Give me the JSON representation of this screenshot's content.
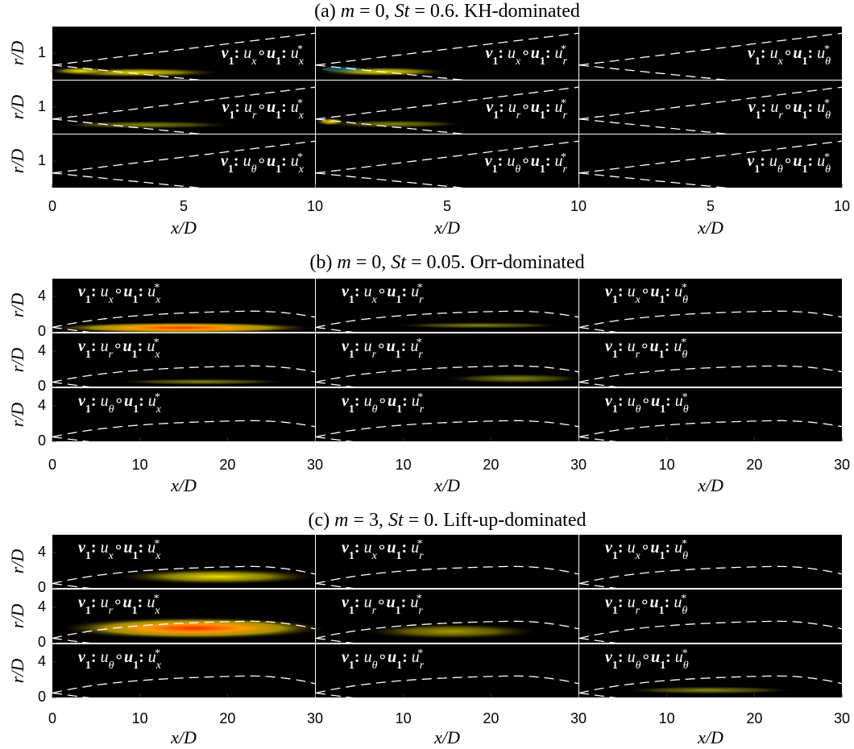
{
  "panels": [
    {
      "title": [
        "(a) ",
        "m",
        " = 0, ",
        "St",
        " = 0.6. KH-dominated"
      ],
      "xlabel": "x/D",
      "ylabel": "r/D",
      "xlim": [
        0,
        10
      ],
      "ylim": [
        0,
        2
      ],
      "yticks": [
        1
      ],
      "columns": [
        {
          "xticks": [
            0,
            5,
            10
          ]
        },
        {
          "xticks": [
            5,
            10
          ]
        },
        {
          "xticks": [
            5,
            10
          ]
        }
      ],
      "rows": [
        [
          {
            "v": "v",
            "v_sub": "1",
            "s1": ": ",
            "a": "u",
            "a_sub": "x",
            "o": "∘",
            "w": "u",
            "w_sub": "1",
            "s2": ": ",
            "b": "u",
            "b_sub": "x",
            "b_sup": "*"
          },
          {
            "v": "v",
            "v_sub": "1",
            "s1": ": ",
            "a": "u",
            "a_sub": "x",
            "o": "∘",
            "w": "u",
            "w_sub": "1",
            "s2": ": ",
            "b": "u",
            "b_sub": "r",
            "b_sup": "*"
          },
          {
            "v": "v",
            "v_sub": "1",
            "s1": ": ",
            "a": "u",
            "a_sub": "x",
            "o": "∘",
            "w": "u",
            "w_sub": "1",
            "s2": ": ",
            "b": "u",
            "b_sub": "θ",
            "b_sup": "*"
          }
        ],
        [
          {
            "v": "v",
            "v_sub": "1",
            "s1": ": ",
            "a": "u",
            "a_sub": "r",
            "o": "∘",
            "w": "u",
            "w_sub": "1",
            "s2": ": ",
            "b": "u",
            "b_sub": "x",
            "b_sup": "*"
          },
          {
            "v": "v",
            "v_sub": "1",
            "s1": ": ",
            "a": "u",
            "a_sub": "r",
            "o": "∘",
            "w": "u",
            "w_sub": "1",
            "s2": ": ",
            "b": "u",
            "b_sub": "r",
            "b_sup": "*"
          },
          {
            "v": "v",
            "v_sub": "1",
            "s1": ": ",
            "a": "u",
            "a_sub": "r",
            "o": "∘",
            "w": "u",
            "w_sub": "1",
            "s2": ": ",
            "b": "u",
            "b_sub": "θ",
            "b_sup": "*"
          }
        ],
        [
          {
            "v": "v",
            "v_sub": "1",
            "s1": ": ",
            "a": "u",
            "a_sub": "θ",
            "o": "∘",
            "w": "u",
            "w_sub": "1",
            "s2": ": ",
            "b": "u",
            "b_sub": "x",
            "b_sup": "*"
          },
          {
            "v": "v",
            "v_sub": "1",
            "s1": ": ",
            "a": "u",
            "a_sub": "θ",
            "o": "∘",
            "w": "u",
            "w_sub": "1",
            "s2": ": ",
            "b": "u",
            "b_sub": "r",
            "b_sup": "*"
          },
          {
            "v": "v",
            "v_sub": "1",
            "s1": ": ",
            "a": "u",
            "a_sub": "θ",
            "o": "∘",
            "w": "u",
            "w_sub": "1",
            "s2": ": ",
            "b": "u",
            "b_sub": "θ",
            "b_sup": "*"
          }
        ]
      ]
    },
    {
      "title": [
        "(b) ",
        "m",
        " = 0, ",
        "St",
        " = 0.05. Orr-dominated"
      ],
      "xlabel": "x/D",
      "ylabel": "r/D",
      "xlim": [
        0,
        30
      ],
      "ylim": [
        0,
        6
      ],
      "yticks": [
        0,
        4
      ],
      "columns": [
        {
          "xticks": [
            0,
            10,
            20,
            30
          ]
        },
        {
          "xticks": [
            10,
            20,
            30
          ]
        },
        {
          "xticks": [
            10,
            20,
            30
          ]
        }
      ],
      "rows": [
        [
          {
            "v": "v",
            "v_sub": "1",
            "s1": ": ",
            "a": "u",
            "a_sub": "x",
            "o": "∘",
            "w": "u",
            "w_sub": "1",
            "s2": ": ",
            "b": "u",
            "b_sub": "x",
            "b_sup": "*"
          },
          {
            "v": "v",
            "v_sub": "1",
            "s1": ": ",
            "a": "u",
            "a_sub": "x",
            "o": "∘",
            "w": "u",
            "w_sub": "1",
            "s2": ": ",
            "b": "u",
            "b_sub": "r",
            "b_sup": "*"
          },
          {
            "v": "v",
            "v_sub": "1",
            "s1": ": ",
            "a": "u",
            "a_sub": "x",
            "o": "∘",
            "w": "u",
            "w_sub": "1",
            "s2": ": ",
            "b": "u",
            "b_sub": "θ",
            "b_sup": "*"
          }
        ],
        [
          {
            "v": "v",
            "v_sub": "1",
            "s1": ": ",
            "a": "u",
            "a_sub": "r",
            "o": "∘",
            "w": "u",
            "w_sub": "1",
            "s2": ": ",
            "b": "u",
            "b_sub": "x",
            "b_sup": "*"
          },
          {
            "v": "v",
            "v_sub": "1",
            "s1": ": ",
            "a": "u",
            "a_sub": "r",
            "o": "∘",
            "w": "u",
            "w_sub": "1",
            "s2": ": ",
            "b": "u",
            "b_sub": "r",
            "b_sup": "*"
          },
          {
            "v": "v",
            "v_sub": "1",
            "s1": ": ",
            "a": "u",
            "a_sub": "r",
            "o": "∘",
            "w": "u",
            "w_sub": "1",
            "s2": ": ",
            "b": "u",
            "b_sub": "θ",
            "b_sup": "*"
          }
        ],
        [
          {
            "v": "v",
            "v_sub": "1",
            "s1": ": ",
            "a": "u",
            "a_sub": "θ",
            "o": "∘",
            "w": "u",
            "w_sub": "1",
            "s2": ": ",
            "b": "u",
            "b_sub": "x",
            "b_sup": "*"
          },
          {
            "v": "v",
            "v_sub": "1",
            "s1": ": ",
            "a": "u",
            "a_sub": "θ",
            "o": "∘",
            "w": "u",
            "w_sub": "1",
            "s2": ": ",
            "b": "u",
            "b_sub": "r",
            "b_sup": "*"
          },
          {
            "v": "v",
            "v_sub": "1",
            "s1": ": ",
            "a": "u",
            "a_sub": "θ",
            "o": "∘",
            "w": "u",
            "w_sub": "1",
            "s2": ": ",
            "b": "u",
            "b_sub": "θ",
            "b_sup": "*"
          }
        ]
      ]
    },
    {
      "title": [
        "(c) ",
        "m",
        " = 3, ",
        "St",
        " = 0. Lift-up-dominated"
      ],
      "xlabel": "x/D",
      "ylabel": "r/D",
      "xlim": [
        0,
        30
      ],
      "ylim": [
        0,
        6
      ],
      "yticks": [
        0,
        4
      ],
      "columns": [
        {
          "xticks": [
            0,
            10,
            20,
            30
          ]
        },
        {
          "xticks": [
            10,
            20,
            30
          ]
        },
        {
          "xticks": [
            10,
            20,
            30
          ]
        }
      ],
      "rows": [
        [
          {
            "v": "v",
            "v_sub": "1",
            "s1": ": ",
            "a": "u",
            "a_sub": "x",
            "o": "∘",
            "w": "u",
            "w_sub": "1",
            "s2": ": ",
            "b": "u",
            "b_sub": "x",
            "b_sup": "*"
          },
          {
            "v": "v",
            "v_sub": "1",
            "s1": ": ",
            "a": "u",
            "a_sub": "x",
            "o": "∘",
            "w": "u",
            "w_sub": "1",
            "s2": ": ",
            "b": "u",
            "b_sub": "r",
            "b_sup": "*"
          },
          {
            "v": "v",
            "v_sub": "1",
            "s1": ": ",
            "a": "u",
            "a_sub": "x",
            "o": "∘",
            "w": "u",
            "w_sub": "1",
            "s2": ": ",
            "b": "u",
            "b_sub": "θ",
            "b_sup": "*"
          }
        ],
        [
          {
            "v": "v",
            "v_sub": "1",
            "s1": ": ",
            "a": "u",
            "a_sub": "r",
            "o": "∘",
            "w": "u",
            "w_sub": "1",
            "s2": ": ",
            "b": "u",
            "b_sub": "x",
            "b_sup": "*"
          },
          {
            "v": "v",
            "v_sub": "1",
            "s1": ": ",
            "a": "u",
            "a_sub": "r",
            "o": "∘",
            "w": "u",
            "w_sub": "1",
            "s2": ": ",
            "b": "u",
            "b_sub": "r",
            "b_sup": "*"
          },
          {
            "v": "v",
            "v_sub": "1",
            "s1": ": ",
            "a": "u",
            "a_sub": "r",
            "o": "∘",
            "w": "u",
            "w_sub": "1",
            "s2": ": ",
            "b": "u",
            "b_sub": "θ",
            "b_sup": "*"
          }
        ],
        [
          {
            "v": "v",
            "v_sub": "1",
            "s1": ": ",
            "a": "u",
            "a_sub": "θ",
            "o": "∘",
            "w": "u",
            "w_sub": "1",
            "s2": ": ",
            "b": "u",
            "b_sub": "x",
            "b_sup": "*"
          },
          {
            "v": "v",
            "v_sub": "1",
            "s1": ": ",
            "a": "u",
            "a_sub": "θ",
            "o": "∘",
            "w": "u",
            "w_sub": "1",
            "s2": ": ",
            "b": "u",
            "b_sub": "r",
            "b_sup": "*"
          },
          {
            "v": "v",
            "v_sub": "1",
            "s1": ": ",
            "a": "u",
            "a_sub": "θ",
            "o": "∘",
            "w": "u",
            "w_sub": "1",
            "s2": ": ",
            "b": "u",
            "b_sub": "θ",
            "b_sup": "*"
          }
        ]
      ]
    }
  ]
}
